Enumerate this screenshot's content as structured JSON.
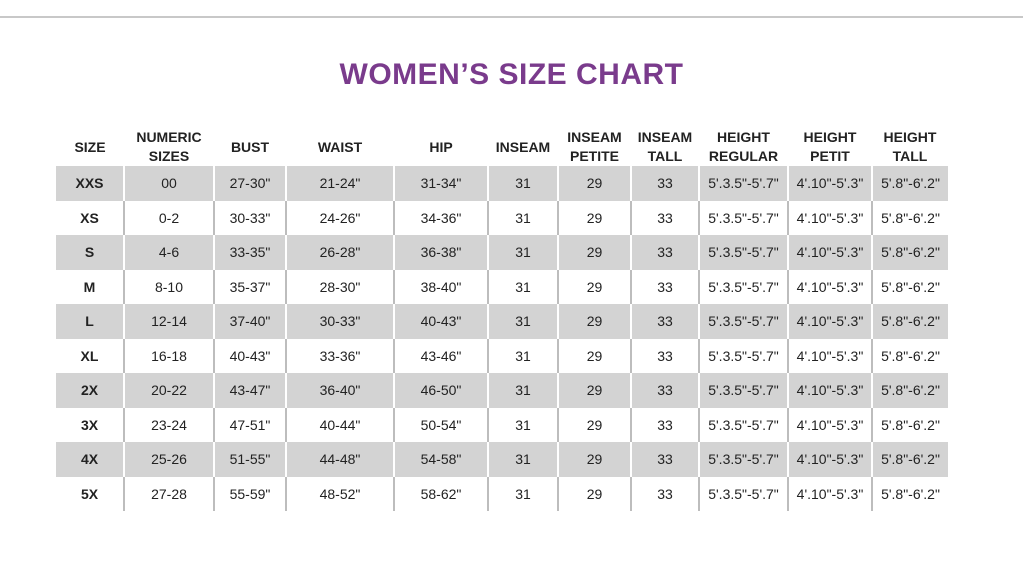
{
  "title": "WOMEN’S SIZE CHART",
  "headers": [
    [
      "SIZE"
    ],
    [
      "NUMERIC",
      "SIZES"
    ],
    [
      "BUST"
    ],
    [
      "WAIST"
    ],
    [
      "HIP"
    ],
    [
      "INSEAM"
    ],
    [
      "INSEAM",
      "PETITE"
    ],
    [
      "INSEAM",
      "TALL"
    ],
    [
      "HEIGHT",
      "REGULAR"
    ],
    [
      "HEIGHT",
      "PETIT"
    ],
    [
      "HEIGHT",
      "TALL"
    ]
  ],
  "rows": [
    [
      "XXS",
      "00",
      "27-30\"",
      "21-24\"",
      "31-34\"",
      "31",
      "29",
      "33",
      "5'.3.5\"-5'.7\"",
      "4'.10\"-5'.3\"",
      "5'.8\"-6'.2\""
    ],
    [
      "XS",
      "0-2",
      "30-33\"",
      "24-26\"",
      "34-36\"",
      "31",
      "29",
      "33",
      "5'.3.5\"-5'.7\"",
      "4'.10\"-5'.3\"",
      "5'.8\"-6'.2\""
    ],
    [
      "S",
      "4-6",
      "33-35\"",
      "26-28\"",
      "36-38\"",
      "31",
      "29",
      "33",
      "5'.3.5\"-5'.7\"",
      "4'.10\"-5'.3\"",
      "5'.8\"-6'.2\""
    ],
    [
      "M",
      "8-10",
      "35-37\"",
      "28-30\"",
      "38-40\"",
      "31",
      "29",
      "33",
      "5'.3.5\"-5'.7\"",
      "4'.10\"-5'.3\"",
      "5'.8\"-6'.2\""
    ],
    [
      "L",
      "12-14",
      "37-40\"",
      "30-33\"",
      "40-43\"",
      "31",
      "29",
      "33",
      "5'.3.5\"-5'.7\"",
      "4'.10\"-5'.3\"",
      "5'.8\"-6'.2\""
    ],
    [
      "XL",
      "16-18",
      "40-43\"",
      "33-36\"",
      "43-46\"",
      "31",
      "29",
      "33",
      "5'.3.5\"-5'.7\"",
      "4'.10\"-5'.3\"",
      "5'.8\"-6'.2\""
    ],
    [
      "2X",
      "20-22",
      "43-47\"",
      "36-40\"",
      "46-50\"",
      "31",
      "29",
      "33",
      "5'.3.5\"-5'.7\"",
      "4'.10\"-5'.3\"",
      "5'.8\"-6'.2\""
    ],
    [
      "3X",
      "23-24",
      "47-51\"",
      "40-44\"",
      "50-54\"",
      "31",
      "29",
      "33",
      "5'.3.5\"-5'.7\"",
      "4'.10\"-5'.3\"",
      "5'.8\"-6'.2\""
    ],
    [
      "4X",
      "25-26",
      "51-55\"",
      "44-48\"",
      "54-58\"",
      "31",
      "29",
      "33",
      "5'.3.5\"-5'.7\"",
      "4'.10\"-5'.3\"",
      "5'.8\"-6'.2\""
    ],
    [
      "5X",
      "27-28",
      "55-59\"",
      "48-52\"",
      "58-62\"",
      "31",
      "29",
      "33",
      "5'.3.5\"-5'.7\"",
      "4'.10\"-5'.3\"",
      "5'.8\"-6'.2\""
    ]
  ],
  "colors": {
    "title": "#7a3b8c",
    "shaded_row": "#d3d3d3"
  }
}
